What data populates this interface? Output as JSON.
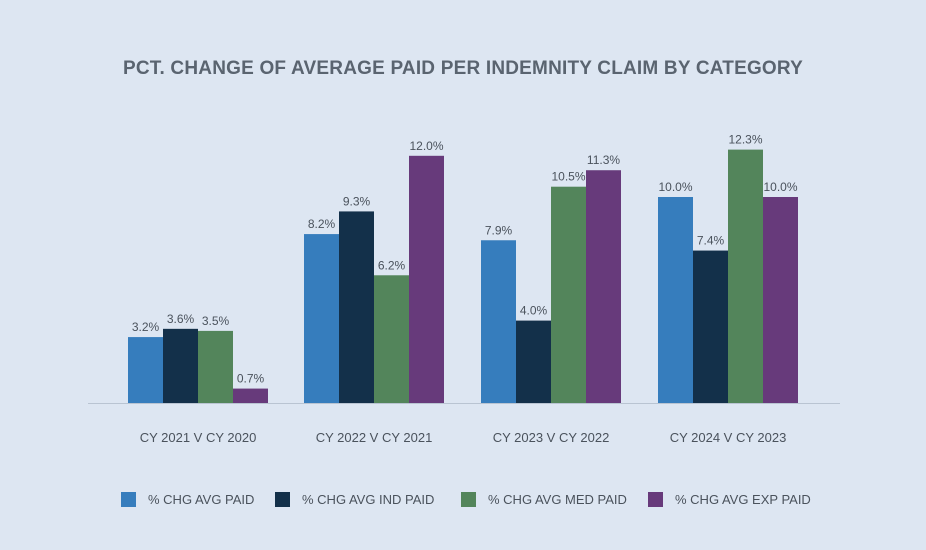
{
  "chart_data": {
    "type": "bar",
    "title": "PCT. CHANGE OF AVERAGE PAID PER INDEMNITY CLAIM BY CATEGORY",
    "xlabel": "",
    "ylabel": "",
    "ylim": [
      0,
      13
    ],
    "grid": false,
    "legend_position": "bottom",
    "categories": [
      "CY 2021 V CY 2020",
      "CY 2022 V CY 2021",
      "CY 2023 V CY 2022",
      "CY 2024 V CY 2023"
    ],
    "series": [
      {
        "name": "% CHG AVG PAID",
        "color": "#367dbd",
        "values": [
          3.2,
          8.2,
          7.9,
          10.0
        ],
        "labels": [
          "3.2%",
          "8.2%",
          "7.9%",
          "10.0%"
        ]
      },
      {
        "name": "% CHG AVG IND PAID",
        "color": "#13304a",
        "values": [
          3.6,
          9.3,
          4.0,
          7.4
        ],
        "labels": [
          "3.6%",
          "9.3%",
          "4.0%",
          "7.4%"
        ]
      },
      {
        "name": "% CHG AVG MED PAID",
        "color": "#53855b",
        "values": [
          3.5,
          6.2,
          10.5,
          12.3
        ],
        "labels": [
          "3.5%",
          "6.2%",
          "10.5%",
          "12.3%"
        ]
      },
      {
        "name": "% CHG AVG EXP PAID",
        "color": "#673a7b",
        "values": [
          0.7,
          12.0,
          11.3,
          10.0
        ],
        "labels": [
          "0.7%",
          "12.0%",
          "11.3%",
          "10.0%"
        ]
      }
    ]
  },
  "colors": {
    "background": "#dde6f2",
    "title": "#5a6470",
    "axis_line": "#b9c4d2",
    "text": "#4a525c"
  }
}
